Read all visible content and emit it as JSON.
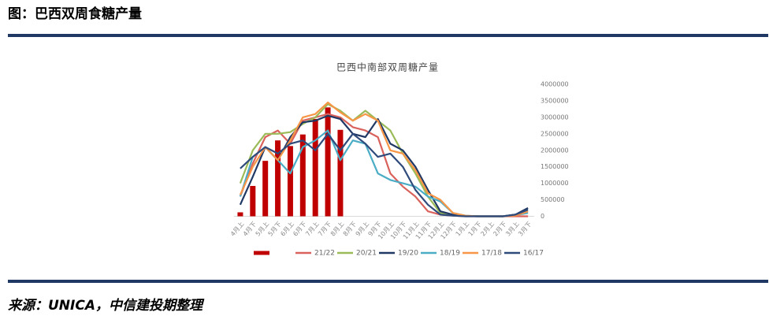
{
  "header": {
    "title": "图：巴西双周食糖产量"
  },
  "source": "来源：UNICA，中信建投期整理",
  "chart_data": {
    "type": "combo",
    "title": "巴西中南部双周糖产量",
    "categories": [
      "4月上",
      "4月下",
      "5月上",
      "5月下",
      "6月上",
      "6月下",
      "7月上",
      "7月下",
      "8月上",
      "8月下",
      "9月上",
      "9月下",
      "10月上",
      "10月下",
      "11月上",
      "11月下",
      "12月上",
      "12月下",
      "1月上",
      "1月下",
      "2月上",
      "2月下",
      "3月上",
      "3月下"
    ],
    "ylim": [
      0,
      4000000
    ],
    "yticks": [
      0,
      500000,
      1000000,
      1500000,
      2000000,
      2500000,
      3000000,
      3500000,
      4000000
    ],
    "grid": false,
    "legend": "bottom",
    "series": [
      {
        "type": "bar",
        "color": "#c00000",
        "values": [
          120000,
          920000,
          1680000,
          2300000,
          2130000,
          2480000,
          2950000,
          3300000,
          2620000,
          null,
          null,
          null,
          null,
          null,
          null,
          null,
          null,
          null,
          null,
          null,
          null,
          null,
          null,
          null
        ]
      },
      {
        "type": "line",
        "name": "21/22",
        "color": "#d9625c",
        "values": [
          600000,
          1600000,
          2400000,
          2600000,
          2200000,
          2900000,
          3000000,
          3100000,
          3000000,
          2700000,
          2600000,
          2400000,
          1300000,
          900000,
          600000,
          150000,
          50000,
          20000,
          0,
          0,
          0,
          0,
          0,
          0
        ]
      },
      {
        "type": "line",
        "name": "20/21",
        "color": "#9bbb59",
        "values": [
          1000000,
          2000000,
          2500000,
          2500000,
          2550000,
          2800000,
          3000000,
          3400000,
          3200000,
          2900000,
          3200000,
          2900000,
          2600000,
          1900000,
          1300000,
          600000,
          100000,
          20000,
          10000,
          0,
          0,
          0,
          50000,
          150000
        ]
      },
      {
        "type": "line",
        "name": "19/20",
        "color": "#1f3864",
        "values": [
          350000,
          1200000,
          2100000,
          1700000,
          2400000,
          2850000,
          2900000,
          3050000,
          2950000,
          2500000,
          2400000,
          2950000,
          2200000,
          2000000,
          1500000,
          800000,
          150000,
          50000,
          10000,
          0,
          0,
          0,
          50000,
          250000
        ]
      },
      {
        "type": "line",
        "name": "18/19",
        "color": "#4bacc6",
        "values": [
          600000,
          1800000,
          2100000,
          1700000,
          1300000,
          2100000,
          2300000,
          2600000,
          1700000,
          2300000,
          2200000,
          1300000,
          1100000,
          1000000,
          900000,
          600000,
          450000,
          100000,
          20000,
          0,
          0,
          0,
          30000,
          100000
        ]
      },
      {
        "type": "line",
        "name": "17/18",
        "color": "#f79646",
        "values": [
          650000,
          1500000,
          2100000,
          1700000,
          2300000,
          3000000,
          3100000,
          3450000,
          3150000,
          2900000,
          3100000,
          2900000,
          2000000,
          1900000,
          1400000,
          700000,
          500000,
          100000,
          20000,
          0,
          0,
          0,
          20000,
          150000
        ]
      },
      {
        "type": "line",
        "name": "16/17",
        "color": "#2f4b7c",
        "values": [
          1450000,
          1800000,
          2100000,
          1900000,
          2200000,
          2300000,
          2000000,
          2500000,
          2000000,
          2500000,
          2200000,
          1800000,
          1900000,
          1500000,
          800000,
          350000,
          50000,
          20000,
          0,
          0,
          0,
          0,
          50000,
          200000
        ]
      }
    ]
  }
}
